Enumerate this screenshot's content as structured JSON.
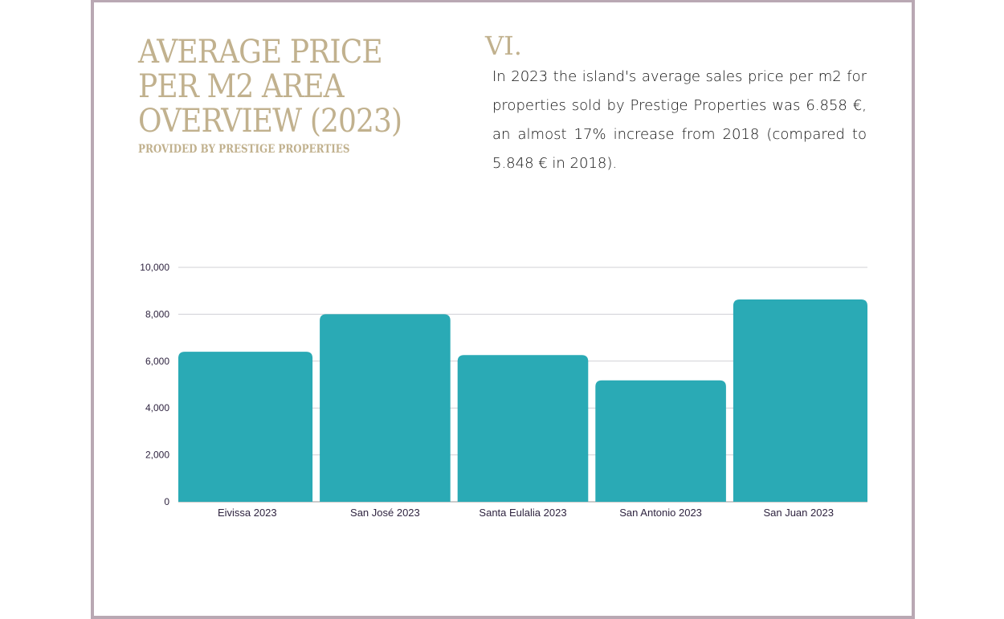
{
  "header": {
    "title_lines": [
      "Average price",
      "per m2 area",
      "overview (2023)"
    ],
    "subtitle": "PROVIDED BY PRESTIGE PROPERTIES",
    "section_number": "VI.",
    "paragraph": "In 2023 the island's average sales price per m2 for properties sold by Prestige Properties was  6.858 €, an almost 17% increase from 2018 (compared to 5.848 € in 2018)."
  },
  "colors": {
    "bar": "#2aaab5",
    "title": "#c1b18e",
    "frame": "#b9a8b3",
    "grid": "#d0d0d6"
  },
  "chart_data": {
    "type": "bar",
    "title": "",
    "xlabel": "",
    "ylabel": "",
    "categories": [
      "Eivissa 2023",
      "San José 2023",
      "Santa Eulalia 2023",
      "San Antonio 2023",
      "San Juan 2023"
    ],
    "values": [
      6400,
      8000,
      6260,
      5180,
      8630
    ],
    "ylim": [
      0,
      10000
    ],
    "yticks": [
      0,
      2000,
      4000,
      6000,
      8000,
      10000
    ],
    "ytick_labels": [
      "0",
      "2,000",
      "4,000",
      "6,000",
      "8,000",
      "10,000"
    ],
    "grid": true
  }
}
